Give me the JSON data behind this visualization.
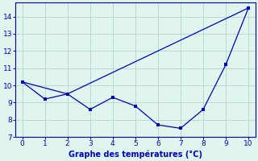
{
  "line1_x": [
    0,
    1,
    2,
    3,
    4,
    5,
    6,
    7,
    8,
    9,
    10
  ],
  "line1_y": [
    10.2,
    9.2,
    9.5,
    8.6,
    9.3,
    8.8,
    7.7,
    7.5,
    8.6,
    11.2,
    14.5
  ],
  "line2_x": [
    0,
    2,
    10
  ],
  "line2_y": [
    10.2,
    9.5,
    14.5
  ],
  "line_color": "#0000bb",
  "bg_color": "#e0f5ee",
  "grid_color": "#b0cccc",
  "xlabel": "Graphe des températures (°C)",
  "xlabel_color": "#0000cc",
  "ylim": [
    7,
    14.8
  ],
  "xlim": [
    -0.3,
    10.3
  ],
  "yticks": [
    7,
    8,
    9,
    10,
    11,
    12,
    13,
    14
  ],
  "xticks": [
    0,
    1,
    2,
    3,
    4,
    5,
    6,
    7,
    8,
    9,
    10
  ]
}
